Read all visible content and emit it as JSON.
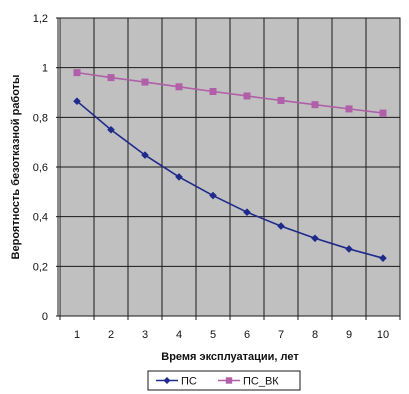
{
  "chart_data": {
    "type": "line",
    "title": "",
    "xlabel": "Время эксплуатации, лет",
    "ylabel": "Вероятность безотказной работы",
    "x": [
      1,
      2,
      3,
      4,
      5,
      6,
      7,
      8,
      9,
      10
    ],
    "xticks": [
      "1",
      "2",
      "3",
      "4",
      "5",
      "6",
      "7",
      "8",
      "9",
      "10"
    ],
    "ylim": [
      0,
      1.2
    ],
    "yticks": [
      "0",
      "0,2",
      "0,4",
      "0,6",
      "0,8",
      "1",
      "1,2"
    ],
    "grid": true,
    "legend_position": "bottom",
    "plot_background": "#c0c0c0",
    "series": [
      {
        "name": "ПС",
        "color": "#1f2a8a",
        "marker": "diamond",
        "values": [
          0.865,
          0.75,
          0.648,
          0.56,
          0.485,
          0.418,
          0.362,
          0.313,
          0.27,
          0.233
        ]
      },
      {
        "name": "ПС_ВК",
        "color": "#b05fa8",
        "marker": "square",
        "values": [
          0.98,
          0.96,
          0.942,
          0.923,
          0.904,
          0.886,
          0.868,
          0.851,
          0.834,
          0.817
        ]
      }
    ]
  }
}
